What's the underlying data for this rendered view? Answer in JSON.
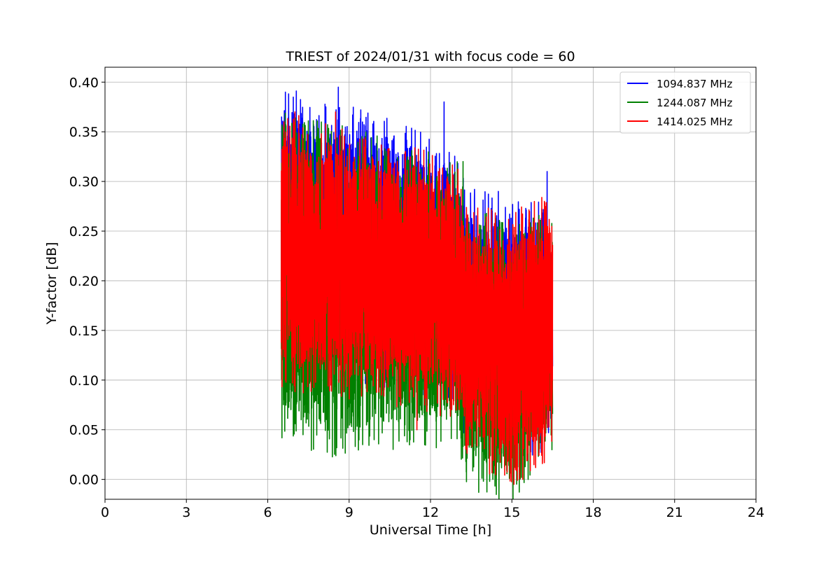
{
  "chart_data": {
    "type": "line",
    "title": "TRIEST of 2024/01/31 with focus code = 60",
    "xlabel": "Universal Time [h]",
    "ylabel": "Y-factor [dB]",
    "xlim": [
      0,
      24
    ],
    "ylim": [
      -0.02,
      0.415
    ],
    "xticks": [
      0,
      3,
      6,
      9,
      12,
      15,
      18,
      21,
      24
    ],
    "yticks": [
      0.0,
      0.05,
      0.1,
      0.15,
      0.2,
      0.25,
      0.3,
      0.35,
      0.4
    ],
    "xtick_labels": [
      "0",
      "3",
      "6",
      "9",
      "12",
      "15",
      "18",
      "21",
      "24"
    ],
    "ytick_labels": [
      "0.00",
      "0.05",
      "0.10",
      "0.15",
      "0.20",
      "0.25",
      "0.30",
      "0.35",
      "0.40"
    ],
    "grid": true,
    "legend_position": "top-right",
    "time_range": [
      6.5,
      16.5
    ],
    "series": [
      {
        "name": "1094.837 MHz",
        "color": "#0000ff",
        "envelope": [
          {
            "x": 6.5,
            "low": 0.13,
            "high": 0.37
          },
          {
            "x": 8.5,
            "low": 0.13,
            "high": 0.35
          },
          {
            "x": 11.0,
            "low": 0.12,
            "high": 0.33
          },
          {
            "x": 13.0,
            "low": 0.1,
            "high": 0.3
          },
          {
            "x": 13.3,
            "low": 0.06,
            "high": 0.27
          },
          {
            "x": 15.0,
            "low": 0.04,
            "high": 0.25
          },
          {
            "x": 16.5,
            "low": 0.06,
            "high": 0.25
          }
        ],
        "spikes": [
          {
            "x": 6.65,
            "y": 0.39
          },
          {
            "x": 8.6,
            "y": 0.395
          },
          {
            "x": 12.5,
            "y": 0.38
          },
          {
            "x": 14.5,
            "y": 0.29
          },
          {
            "x": 16.3,
            "y": 0.31
          }
        ]
      },
      {
        "name": "1244.087 MHz",
        "color": "#008000",
        "envelope": [
          {
            "x": 6.5,
            "low": 0.07,
            "high": 0.34
          },
          {
            "x": 8.5,
            "low": 0.05,
            "high": 0.33
          },
          {
            "x": 11.0,
            "low": 0.06,
            "high": 0.31
          },
          {
            "x": 13.0,
            "low": 0.06,
            "high": 0.29
          },
          {
            "x": 13.3,
            "low": 0.02,
            "high": 0.25
          },
          {
            "x": 15.0,
            "low": 0.005,
            "high": 0.23
          },
          {
            "x": 16.5,
            "low": 0.06,
            "high": 0.24
          }
        ],
        "spikes": [
          {
            "x": 7.3,
            "y": 0.045
          },
          {
            "x": 9.5,
            "y": 0.035
          },
          {
            "x": 13.2,
            "y": 0.32
          },
          {
            "x": 14.3,
            "y": 0.0
          },
          {
            "x": 15.6,
            "y": 0.0
          }
        ]
      },
      {
        "name": "1414.025 MHz",
        "color": "#ff0000",
        "envelope": [
          {
            "x": 6.5,
            "low": 0.12,
            "high": 0.34
          },
          {
            "x": 8.5,
            "low": 0.11,
            "high": 0.33
          },
          {
            "x": 11.0,
            "low": 0.1,
            "high": 0.31
          },
          {
            "x": 13.0,
            "low": 0.09,
            "high": 0.29
          },
          {
            "x": 13.3,
            "low": 0.05,
            "high": 0.25
          },
          {
            "x": 15.0,
            "low": 0.02,
            "high": 0.24
          },
          {
            "x": 16.5,
            "low": 0.05,
            "high": 0.26
          }
        ],
        "spikes": [
          {
            "x": 7.0,
            "y": 0.37
          },
          {
            "x": 8.5,
            "y": 0.37
          },
          {
            "x": 11.5,
            "y": 0.05
          },
          {
            "x": 15.4,
            "y": 0.0
          },
          {
            "x": 16.2,
            "y": 0.28
          }
        ]
      }
    ]
  }
}
